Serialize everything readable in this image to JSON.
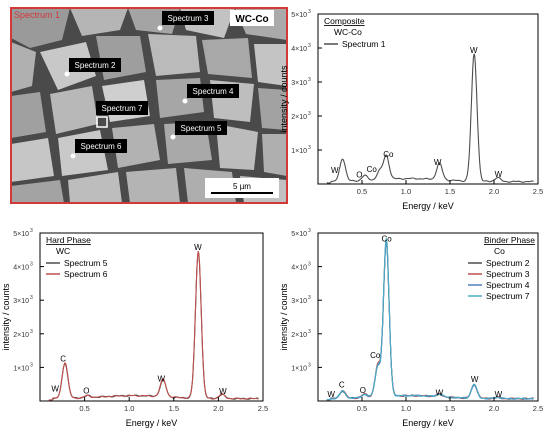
{
  "sem": {
    "corner_label": "Spectrum 1",
    "sample_label": "WC-Co",
    "scalebar_label": "5 µm",
    "spot_labels": [
      "Spectrum 2",
      "Spectrum 3",
      "Spectrum 4",
      "Spectrum 5",
      "Spectrum 6",
      "Spectrum 7"
    ],
    "colors": {
      "frame": "#d23a3a",
      "background": "#4a4a4a",
      "label_bg": "#000000",
      "label_text": "#ffffff"
    }
  },
  "chart_data": [
    {
      "type": "line",
      "title": "Composite",
      "subtitle": "WC-Co",
      "xlabel": "Energy / keV",
      "ylabel": "intensity / counts",
      "xlim": [
        0,
        2.5
      ],
      "ylim": [
        0,
        5000
      ],
      "xticks": [
        0.5,
        1.0,
        1.5,
        2.0,
        2.5
      ],
      "xtick_labels": [
        "0.5",
        "1.0",
        "1.5",
        "2.0",
        "2.5"
      ],
      "yticks": [
        1000,
        2000,
        3000,
        4000,
        5000
      ],
      "ytick_mantissas": [
        "1×10",
        "2×10",
        "3×10",
        "4×10",
        "5×10"
      ],
      "ytick_exponent": "3",
      "legend_position": "top-left",
      "series": [
        {
          "name": "Spectrum 1",
          "color": "#4d4d4d",
          "peaks": [
            [
              0.28,
              670
            ],
            [
              0.53,
              150
            ],
            [
              0.7,
              250
            ],
            [
              0.776,
              700
            ],
            [
              1.38,
              480
            ],
            [
              1.775,
              3750
            ],
            [
              2.04,
              120
            ]
          ]
        }
      ],
      "annotations": [
        {
          "text": "W",
          "x": 0.19,
          "y": 320
        },
        {
          "text": "O",
          "x": 0.47,
          "y": 190
        },
        {
          "text": "Co",
          "x": 0.61,
          "y": 350
        },
        {
          "text": "Co",
          "x": 0.8,
          "y": 800
        },
        {
          "text": "W",
          "x": 1.36,
          "y": 560
        },
        {
          "text": "W",
          "x": 1.77,
          "y": 3850
        },
        {
          "text": "W",
          "x": 2.05,
          "y": 200
        }
      ]
    },
    {
      "type": "line",
      "title": "Hard Phase",
      "subtitle": "WC",
      "xlabel": "Energy / keV",
      "ylabel": "intensity / counts",
      "xlim": [
        0,
        2.5
      ],
      "ylim": [
        0,
        5000
      ],
      "xticks": [
        0.5,
        1.0,
        1.5,
        2.0,
        2.5
      ],
      "xtick_labels": [
        "0.5",
        "1.0",
        "1.5",
        "2.0",
        "2.5"
      ],
      "yticks": [
        1000,
        2000,
        3000,
        4000,
        5000
      ],
      "ytick_mantissas": [
        "1×10",
        "2×10",
        "3×10",
        "4×10",
        "5×10"
      ],
      "ytick_exponent": "3",
      "legend_position": "top-left",
      "series": [
        {
          "name": "Spectrum 5",
          "color": "#4d4d4d",
          "peaks": [
            [
              0.28,
              1050
            ],
            [
              0.53,
              60
            ],
            [
              1.38,
              500
            ],
            [
              1.775,
              4350
            ],
            [
              2.04,
              120
            ]
          ]
        },
        {
          "name": "Spectrum 6",
          "color": "#c0504d",
          "peaks": [
            [
              0.28,
              1070
            ],
            [
              0.53,
              60
            ],
            [
              1.38,
              520
            ],
            [
              1.775,
              4400
            ],
            [
              2.04,
              130
            ]
          ]
        }
      ],
      "annotations": [
        {
          "text": "W",
          "x": 0.17,
          "y": 280
        },
        {
          "text": "C",
          "x": 0.26,
          "y": 1170
        },
        {
          "text": "O",
          "x": 0.52,
          "y": 220
        },
        {
          "text": "W",
          "x": 1.36,
          "y": 580
        },
        {
          "text": "W",
          "x": 1.77,
          "y": 4500
        },
        {
          "text": "W",
          "x": 2.05,
          "y": 210
        }
      ]
    },
    {
      "type": "line",
      "title": "Binder Phase",
      "subtitle": "Co",
      "xlabel": "Energy / keV",
      "ylabel": "intensity / counts",
      "xlim": [
        0,
        2.5
      ],
      "ylim": [
        0,
        5000
      ],
      "xticks": [
        0.5,
        1.0,
        1.5,
        2.0,
        2.5
      ],
      "xtick_labels": [
        "0.5",
        "1.0",
        "1.5",
        "2.0",
        "2.5"
      ],
      "yticks": [
        1000,
        2000,
        3000,
        4000,
        5000
      ],
      "ytick_mantissas": [
        "1×10",
        "2×10",
        "3×10",
        "4×10",
        "5×10"
      ],
      "ytick_exponent": "3",
      "legend_position": "top-right",
      "series": [
        {
          "name": "Spectrum 2",
          "color": "#4d4d4d",
          "peaks": [
            [
              0.28,
              220
            ],
            [
              0.53,
              100
            ],
            [
              0.68,
              900
            ],
            [
              0.776,
              4600
            ],
            [
              1.38,
              80
            ],
            [
              1.775,
              400
            ],
            [
              2.04,
              40
            ]
          ]
        },
        {
          "name": "Spectrum 3",
          "color": "#c0504d",
          "peaks": [
            [
              0.28,
              230
            ],
            [
              0.53,
              110
            ],
            [
              0.68,
              950
            ],
            [
              0.776,
              4650
            ],
            [
              1.38,
              85
            ],
            [
              1.775,
              420
            ],
            [
              2.04,
              45
            ]
          ]
        },
        {
          "name": "Spectrum 4",
          "color": "#4f81bd",
          "peaks": [
            [
              0.28,
              210
            ],
            [
              0.53,
              95
            ],
            [
              0.68,
              880
            ],
            [
              0.776,
              4550
            ],
            [
              1.38,
              80
            ],
            [
              1.775,
              390
            ],
            [
              2.04,
              40
            ]
          ]
        },
        {
          "name": "Spectrum 7",
          "color": "#4bacc6",
          "peaks": [
            [
              0.28,
              225
            ],
            [
              0.53,
              105
            ],
            [
              0.68,
              920
            ],
            [
              0.776,
              4700
            ],
            [
              1.38,
              82
            ],
            [
              1.775,
              410
            ],
            [
              2.04,
              42
            ]
          ]
        }
      ],
      "annotations": [
        {
          "text": "W",
          "x": 0.15,
          "y": 120
        },
        {
          "text": "C",
          "x": 0.27,
          "y": 400
        },
        {
          "text": "O",
          "x": 0.51,
          "y": 240
        },
        {
          "text": "Co",
          "x": 0.65,
          "y": 1280
        },
        {
          "text": "Co",
          "x": 0.78,
          "y": 4750
        },
        {
          "text": "W",
          "x": 1.38,
          "y": 160
        },
        {
          "text": "W",
          "x": 1.78,
          "y": 560
        },
        {
          "text": "W",
          "x": 2.05,
          "y": 120
        }
      ]
    }
  ]
}
